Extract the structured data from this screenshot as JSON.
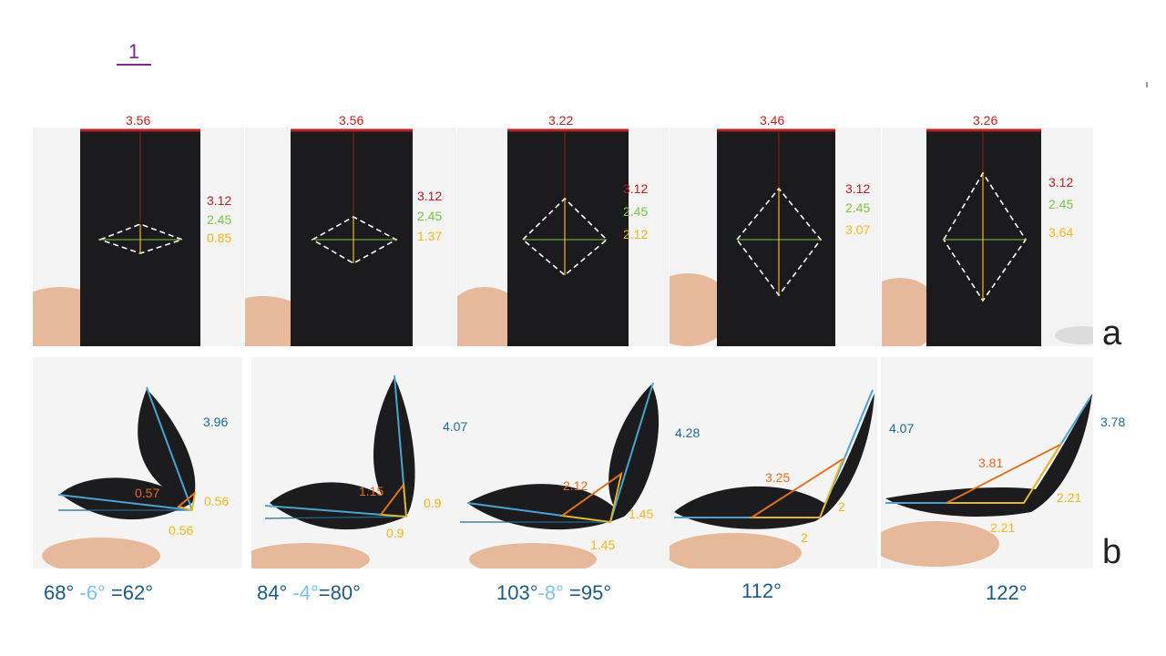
{
  "page": {
    "number": "1"
  },
  "section_labels": {
    "a": "a",
    "b": "b"
  },
  "colors": {
    "width_line": "#b52222",
    "green_line": "#7cc446",
    "yellow_line": "#f0b81e",
    "orange_line": "#e46c1f",
    "blue_line": "#4aa3d1",
    "angle_text": "#1e5a82",
    "angle_sub_text": "#7ec3e8"
  },
  "row_a": [
    {
      "top_width": "3.56",
      "red": "3.12",
      "green": "2.45",
      "yellow": "0.85"
    },
    {
      "top_width": "3.56",
      "red": "3.12",
      "green": "2.45",
      "yellow": "1.37"
    },
    {
      "top_width": "3.22",
      "red": "3.12",
      "green": "2.45",
      "yellow": "2.12"
    },
    {
      "top_width": "3.46",
      "red": "3.12",
      "green": "2.45",
      "yellow": "3.07"
    },
    {
      "top_width": "3.26",
      "red": "3.12",
      "green": "2.45",
      "yellow": "3.64"
    }
  ],
  "row_b": [
    {
      "blue_length": "3.96",
      "orange_length": "0.57",
      "yellow_right": "0.56",
      "yellow_bottom": "0.56",
      "angle_main": "68°",
      "angle_sub": "-6°",
      "angle_result": "=62°"
    },
    {
      "blue_length": "4.07",
      "orange_length": "1.15",
      "yellow_right": "0.9",
      "yellow_bottom": "0.9",
      "angle_main": "84°",
      "angle_sub": "-4°",
      "angle_result": "=80°"
    },
    {
      "blue_length": "4.28",
      "orange_length": "2.12",
      "yellow_right": "1.45",
      "yellow_bottom": "1.45",
      "angle_main": "103°",
      "angle_sub": "-8°",
      "angle_result": "=95°"
    },
    {
      "blue_length": "4.07",
      "orange_length": "3.25",
      "yellow_right": "2",
      "yellow_bottom": "2",
      "angle_main": "112°",
      "angle_sub": "",
      "angle_result": ""
    },
    {
      "blue_length": "3.78",
      "orange_length": "3.81",
      "yellow_right": "2.21",
      "yellow_bottom": "2.21",
      "angle_main": "122°",
      "angle_sub": "",
      "angle_result": ""
    }
  ]
}
